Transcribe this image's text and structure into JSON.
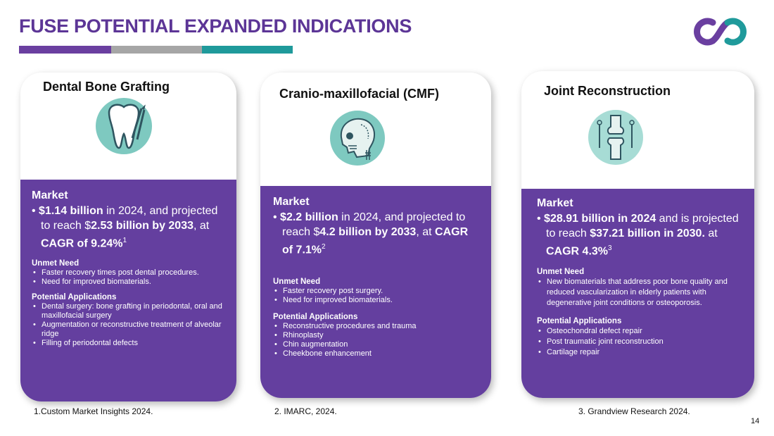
{
  "title": "FUSE POTENTIAL EXPANDED INDICATIONS",
  "colors": {
    "purple": "#643f9f",
    "gray": "#a6a6a6",
    "teal": "#1f9a9b"
  },
  "cards": [
    {
      "heading": "Dental Bone Grafting",
      "icon": "tooth-with-forceps-icon",
      "market_title": "Market",
      "market_pre": "$1.14 billion",
      "market_mid": " in 2024, and projected to reach $",
      "market_bold2": "2.53 billion by 2033",
      "market_mid2": ", at ",
      "market_bold3": "CAGR of 9.24%",
      "market_sup": "1",
      "unmet_title": "Unmet Need",
      "unmet": [
        "Faster recovery times post dental procedures.",
        "Need for improved biomaterials."
      ],
      "apps_title": "Potential Applications",
      "apps": [
        "Dental surgery: bone grafting in periodontal, oral and maxillofacial surgery",
        "Augmentation or reconstructive treatment of alveolar ridge",
        "Filling of periodontal defects"
      ],
      "footnote": "1.Custom Market Insights 2024."
    },
    {
      "heading": "Cranio-maxillofacial (CMF)",
      "icon": "skull-icon",
      "market_title": "Market",
      "market_pre": "$2.2 billion",
      "market_mid": " in 2024, and projected to reach $",
      "market_bold2": "4.2 billion by 2033",
      "market_mid2": ", at ",
      "market_bold3": "CAGR of 7.1%",
      "market_sup": "2",
      "unmet_title": "Unmet Need",
      "unmet": [
        "Faster recovery post surgery.",
        "Need for improved biomaterials."
      ],
      "apps_title": "Potential Applications",
      "apps": [
        "Reconstructive procedures and trauma",
        "Rhinoplasty",
        "Chin augmentation",
        "Cheekbone enhancement"
      ],
      "footnote": "2. IMARC, 2024."
    },
    {
      "heading": "Joint Reconstruction",
      "icon": "knee-joint-icon",
      "market_title": "Market",
      "market_pre": "$28.91 billion in 2024",
      "market_mid": " and is projected to reach ",
      "market_bold2": "$37.21 billion in 2030.",
      "market_mid2": " at ",
      "market_bold3": "CAGR 4.3%",
      "market_sup": "3",
      "unmet_title": "Unmet Need",
      "unmet": [
        "New biomaterials that address poor bone quality and reduced vascularization in elderly patients with degenerative joint conditions or osteoporosis."
      ],
      "apps_title": "Potential Applications",
      "apps": [
        "Osteochondral defect repair",
        "Post traumatic joint reconstruction",
        "Cartilage repair"
      ],
      "footnote": "3. Grandview Research 2024."
    }
  ],
  "page_number": "14"
}
